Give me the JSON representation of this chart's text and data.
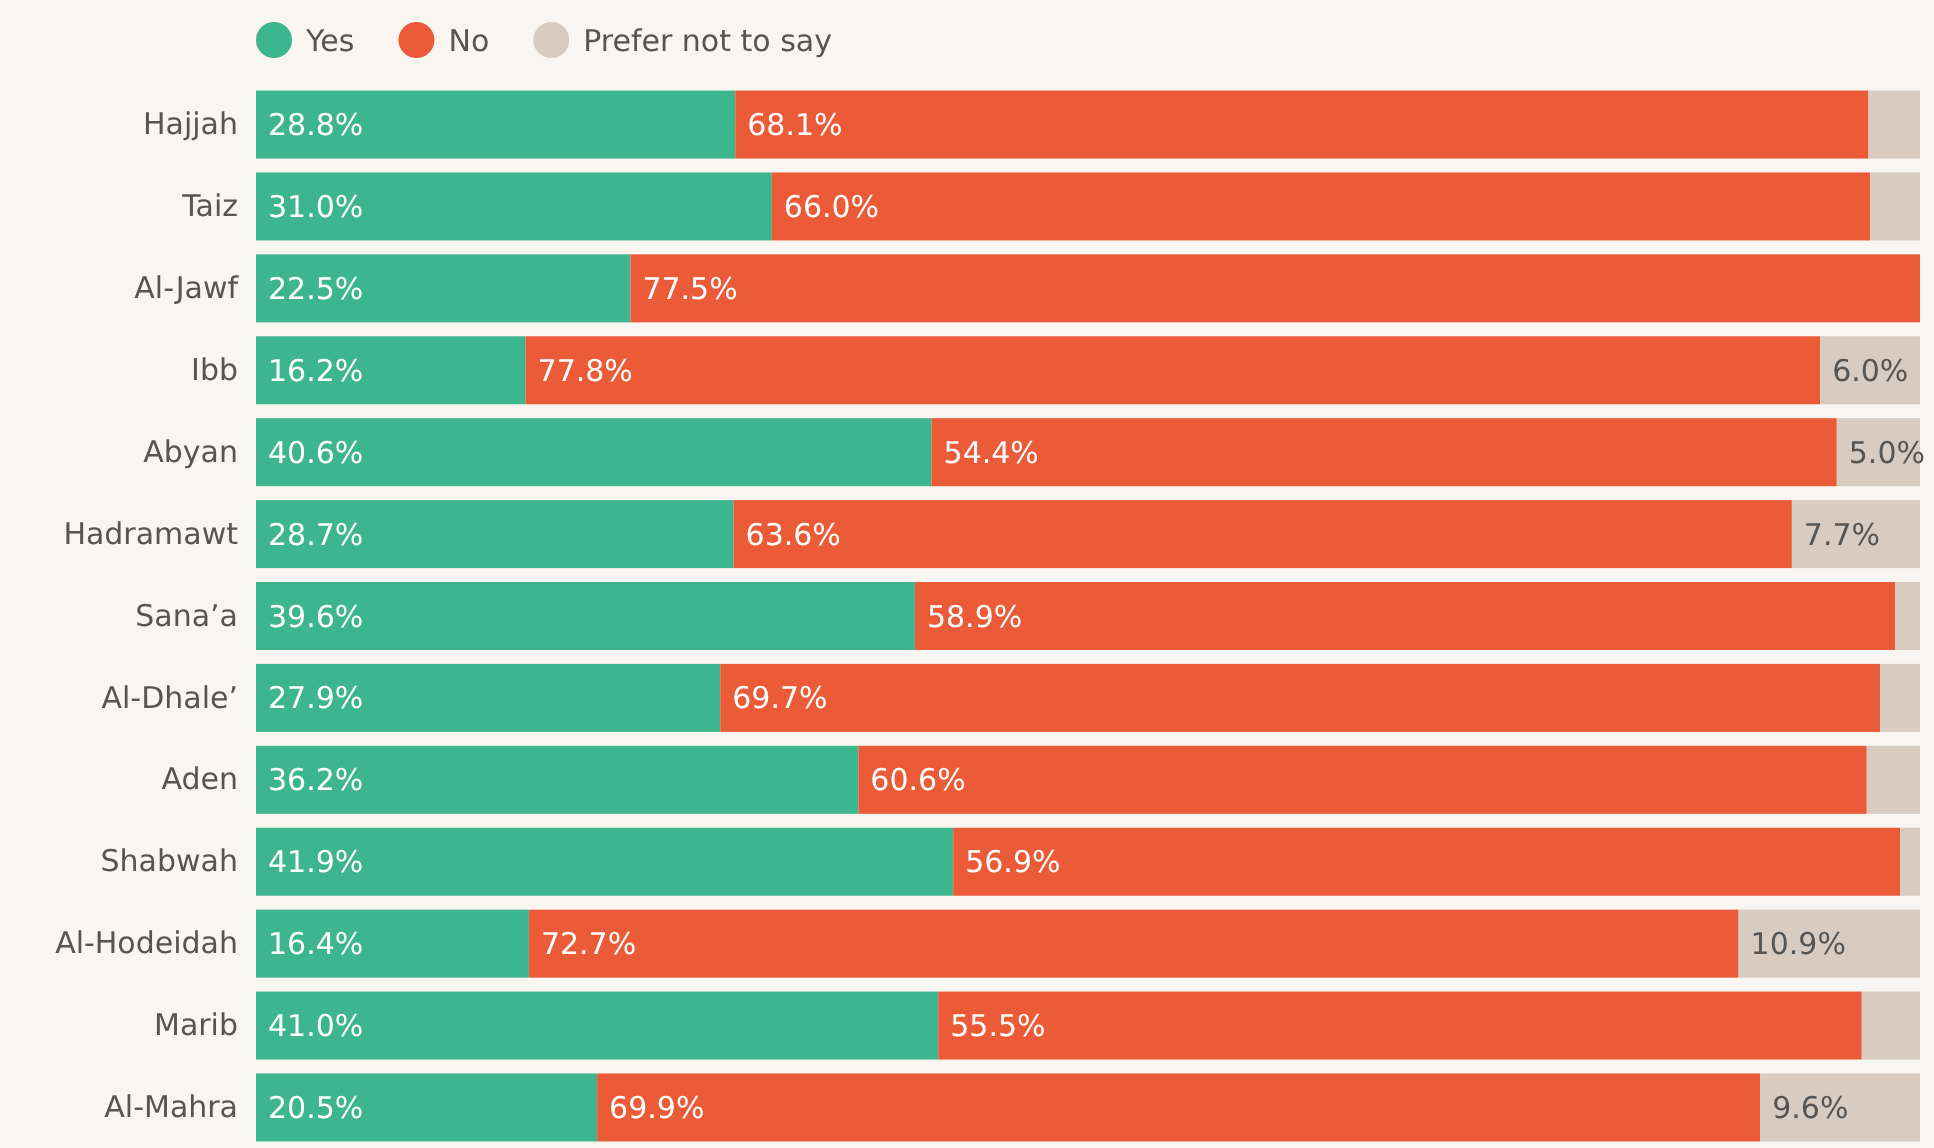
{
  "chart_data": {
    "type": "bar",
    "orientation": "horizontal",
    "stacked": true,
    "legend": "top left",
    "xlim": [
      0,
      100
    ],
    "categories": [
      "Hajjah",
      "Taiz",
      "Al-Jawf",
      "Ibb",
      "Abyan",
      "Hadramawt",
      "Sana’a",
      "Al-Dhale’",
      "Aden",
      "Shabwah",
      "Al-Hodeidah",
      "Marib",
      "Al-Mahra"
    ],
    "series": [
      {
        "name": "Yes",
        "color": "#3db58f",
        "values": [
          28.8,
          31.0,
          22.5,
          16.2,
          40.6,
          28.7,
          39.6,
          27.9,
          36.2,
          41.9,
          16.4,
          41.0,
          20.5
        ],
        "value_labels": [
          "28.8%",
          "31.0%",
          "22.5%",
          "16.2%",
          "40.6%",
          "28.7%",
          "39.6%",
          "27.9%",
          "36.2%",
          "41.9%",
          "16.4%",
          "41.0%",
          "20.5%"
        ]
      },
      {
        "name": "No",
        "color": "#ec5b37",
        "values": [
          68.1,
          66.0,
          77.5,
          77.8,
          54.4,
          63.6,
          58.9,
          69.7,
          60.6,
          56.9,
          72.7,
          55.5,
          69.9
        ],
        "value_labels": [
          "68.1%",
          "66.0%",
          "77.5%",
          "77.8%",
          "54.4%",
          "63.6%",
          "58.9%",
          "69.7%",
          "60.6%",
          "56.9%",
          "72.7%",
          "55.5%",
          "69.9%"
        ]
      },
      {
        "name": "Prefer not to say",
        "color": "#d8cbc1",
        "values": [
          3.1,
          3.0,
          0,
          6.0,
          5.0,
          7.7,
          1.5,
          2.4,
          3.2,
          1.2,
          10.9,
          3.5,
          9.6
        ],
        "value_labels": [
          null,
          null,
          null,
          "6.0%",
          "5.0%",
          "7.7%",
          null,
          null,
          null,
          null,
          "10.9%",
          null,
          "9.6%"
        ]
      }
    ]
  }
}
